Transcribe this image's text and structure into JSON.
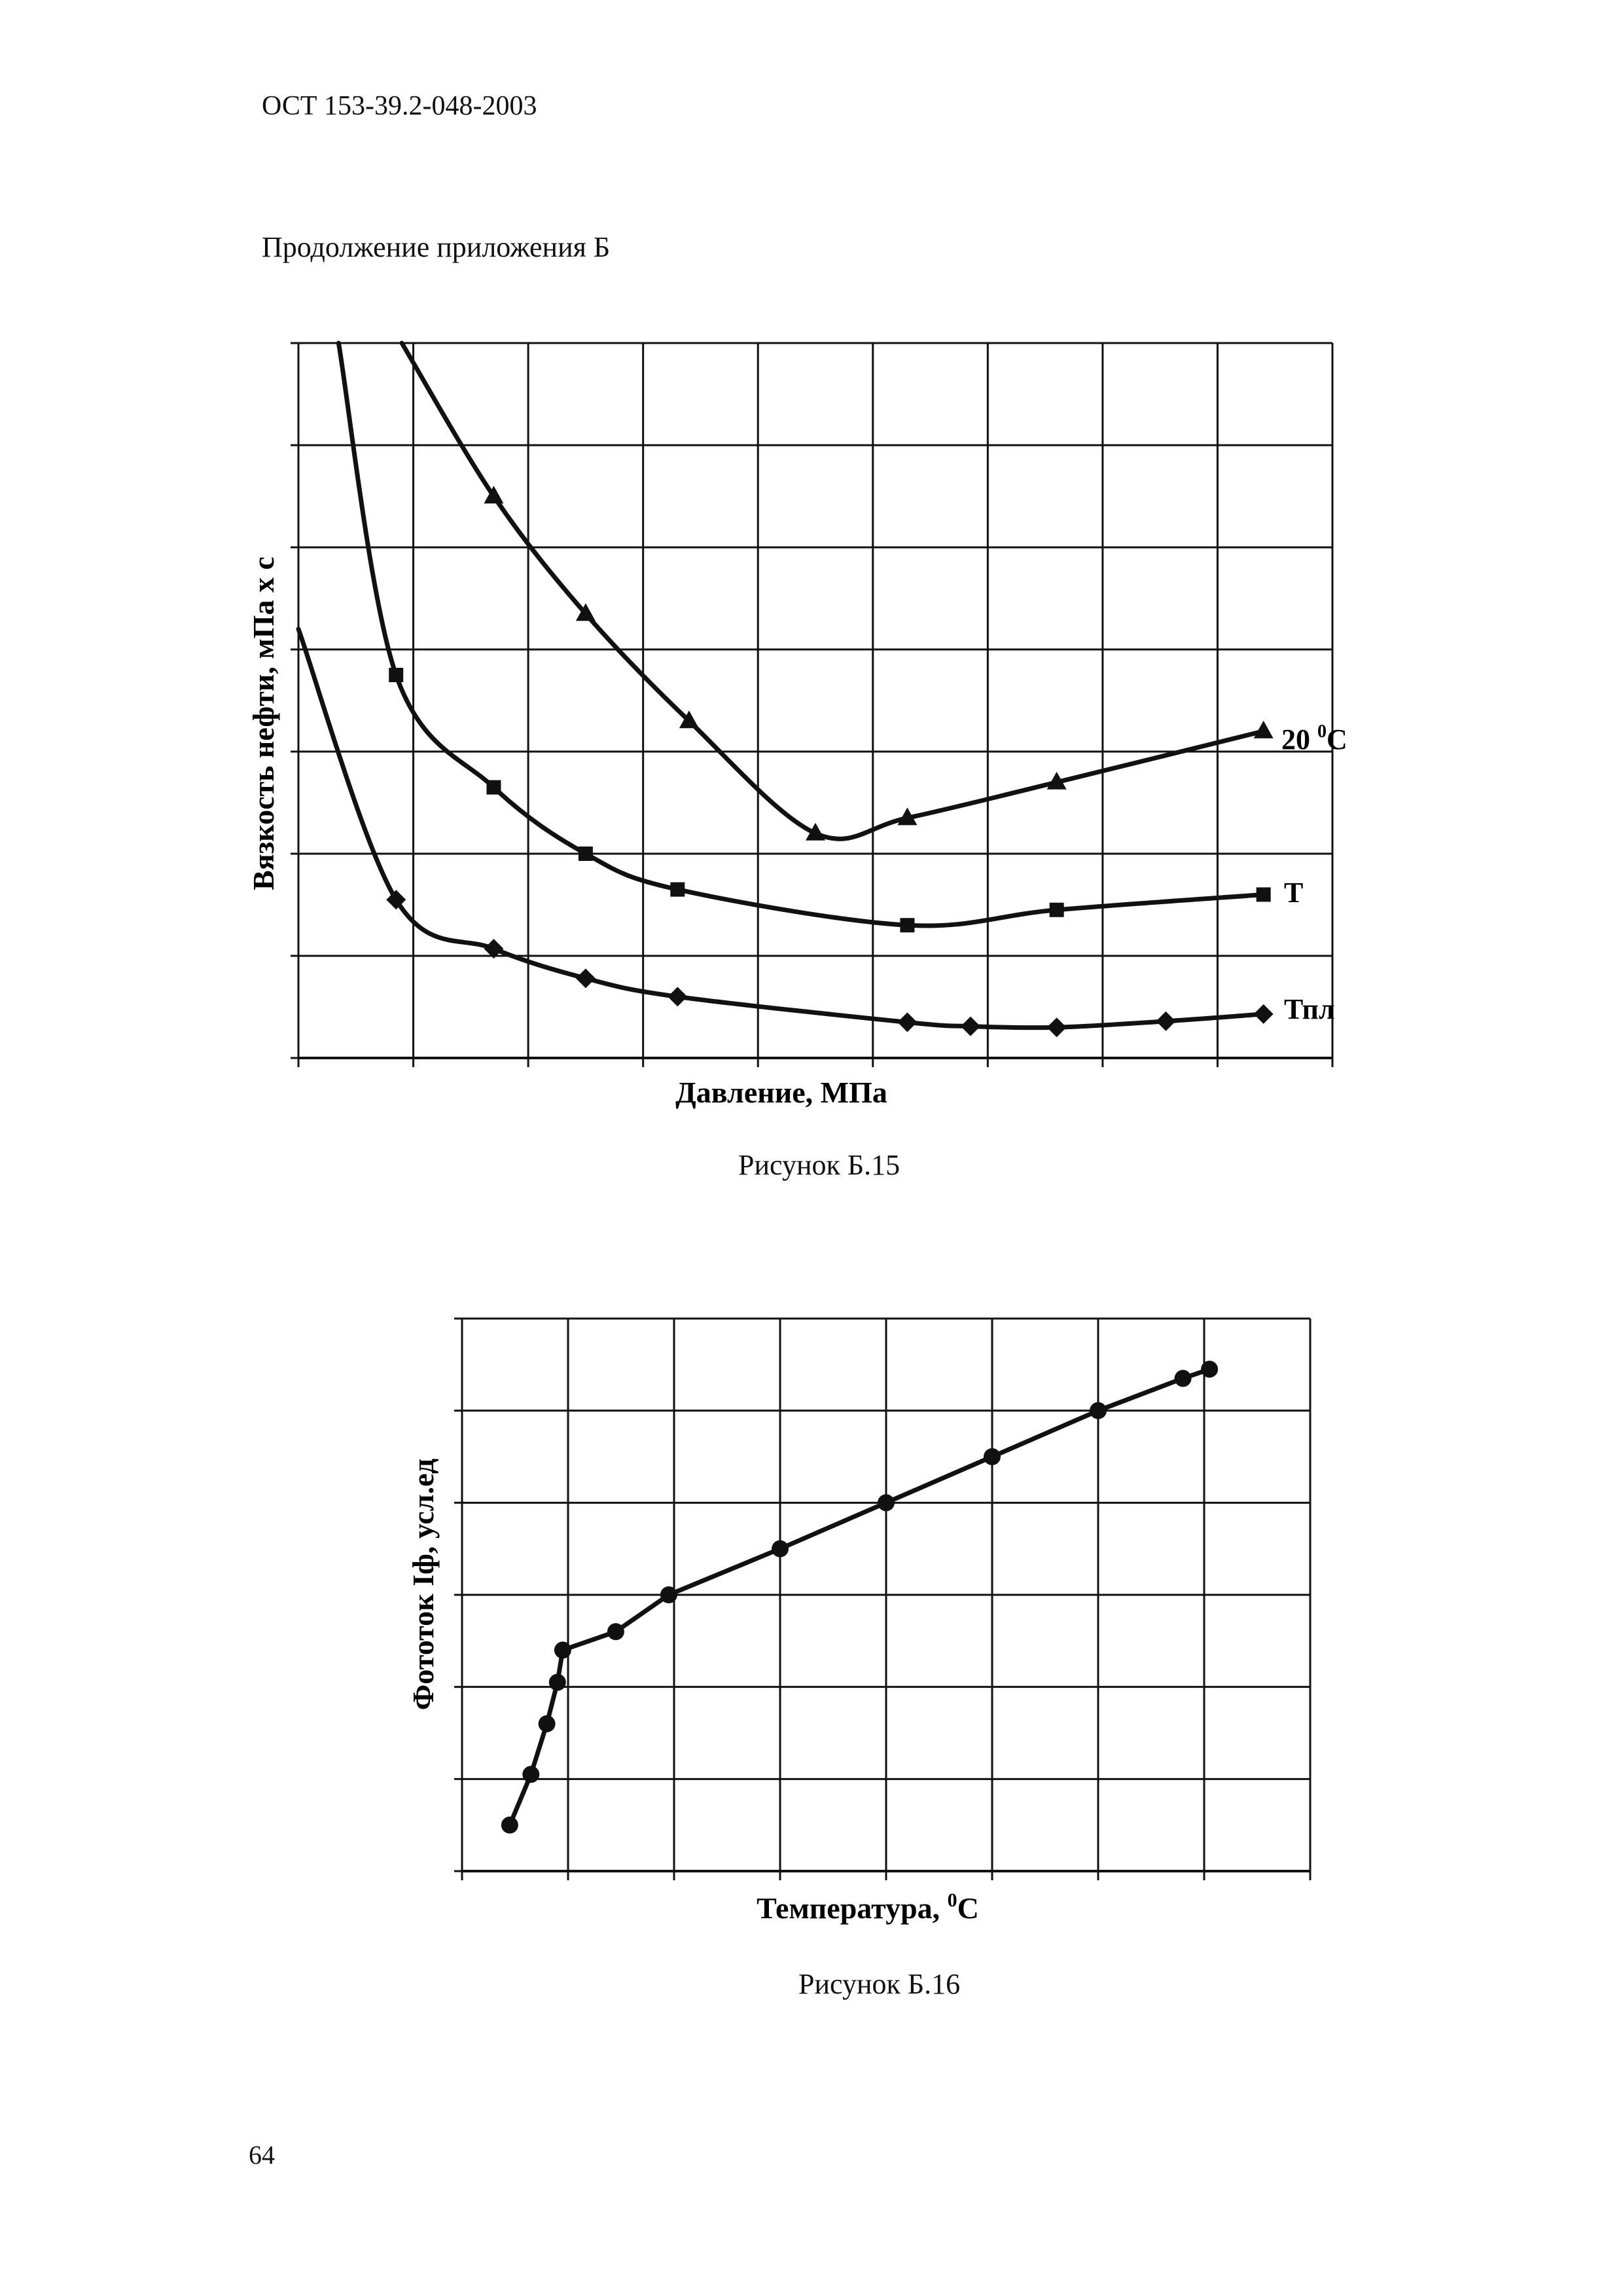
{
  "header": {
    "doc_code": "ОСТ 153-39.2-048-2003",
    "section": "Продолжение приложения Б"
  },
  "page_number": "64",
  "chart_data": [
    {
      "type": "line",
      "caption": "Рисунок Б.15",
      "xlabel": "Давление, МПа",
      "ylabel": "Вязкость нефти, мПа х с",
      "xlim": [
        0,
        9
      ],
      "ylim": [
        0,
        7
      ],
      "grid": true,
      "series": [
        {
          "name": "20 °C",
          "label_main": "20 ",
          "label_sup": "0",
          "label_unit": "С",
          "marker": "triangle",
          "curve_start": [
            0.9,
            7.0
          ],
          "x": [
            1.7,
            2.5,
            3.4,
            4.5,
            5.3,
            6.6,
            8.4
          ],
          "y": [
            5.5,
            4.35,
            3.3,
            2.2,
            2.35,
            2.7,
            3.2
          ]
        },
        {
          "name": "T",
          "label_main": "T",
          "marker": "square",
          "curve_start": [
            0.35,
            7.0
          ],
          "x": [
            0.85,
            1.7,
            2.5,
            3.3,
            5.3,
            6.6,
            8.4
          ],
          "y": [
            3.75,
            2.65,
            2.0,
            1.65,
            1.3,
            1.45,
            1.6
          ]
        },
        {
          "name": "Тпл",
          "label_main": "Тпл",
          "marker": "diamond",
          "curve_start": [
            0.0,
            4.2
          ],
          "x": [
            0.85,
            1.7,
            2.5,
            3.3,
            5.3,
            5.85,
            6.6,
            7.55,
            8.4
          ],
          "y": [
            1.55,
            1.07,
            0.78,
            0.6,
            0.35,
            0.31,
            0.3,
            0.36,
            0.43
          ]
        }
      ]
    },
    {
      "type": "line",
      "caption": "Рисунок Б.16",
      "xlabel_main": "Температура, ",
      "xlabel_sup": "0",
      "xlabel_unit": "С",
      "ylabel": "Фототок Iф, усл.ед",
      "xlim": [
        0,
        8
      ],
      "ylim": [
        0,
        6
      ],
      "grid": true,
      "series": [
        {
          "name": "Фототок",
          "marker": "circle",
          "x": [
            0.45,
            0.65,
            0.8,
            0.9,
            0.95,
            1.45,
            1.95,
            3.0,
            4.0,
            5.0,
            6.0,
            6.8,
            7.05
          ],
          "y": [
            0.5,
            1.05,
            1.6,
            2.05,
            2.4,
            2.6,
            3.0,
            3.5,
            4.0,
            4.5,
            5.0,
            5.35,
            5.45
          ]
        }
      ]
    }
  ]
}
